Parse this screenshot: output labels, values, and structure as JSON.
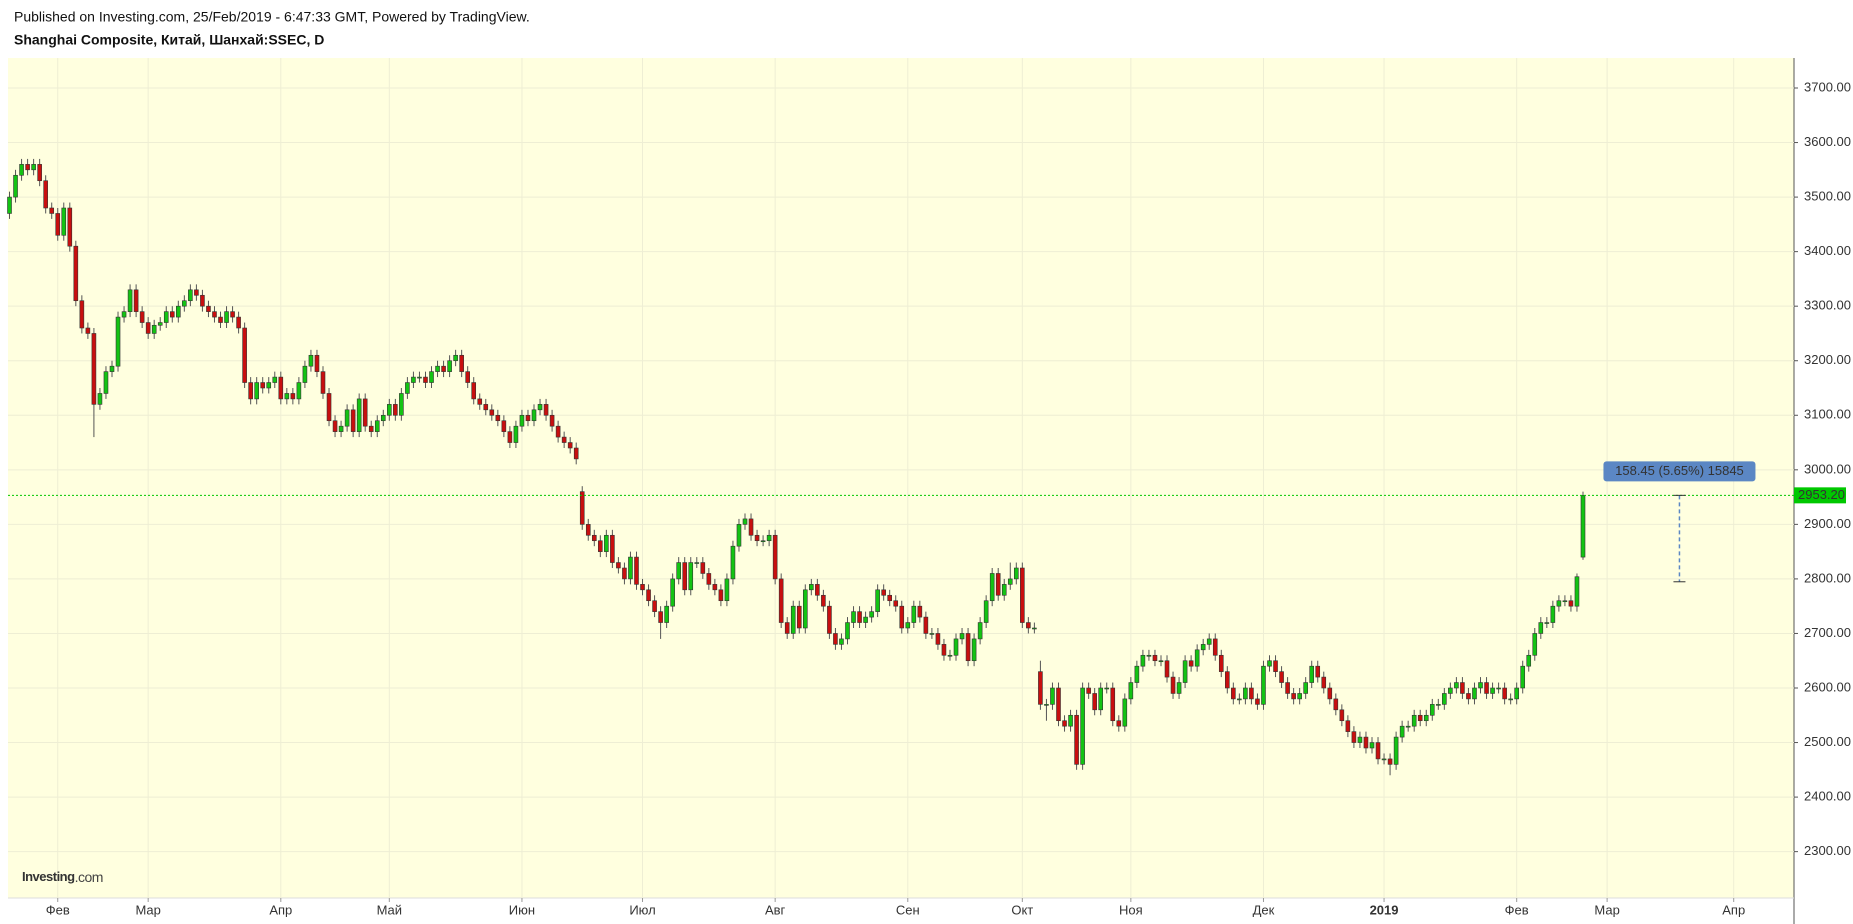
{
  "header": {
    "published": "Published on Investing.com, 25/Feb/2019 - 6:47:33 GMT, Powered by TradingView."
  },
  "chart_data": {
    "type": "candlestick",
    "title": "Shanghai Composite, Китай, Шанхай:SSEC, D",
    "logo": "Investing",
    "logo_suffix": ".com",
    "up_color": "#13c313",
    "down_color": "#c80f0f",
    "open": [
      3470,
      3500,
      3540,
      3560,
      3550,
      3560,
      3530,
      3480,
      3470,
      3430,
      3480,
      3410,
      3310,
      3260,
      3250,
      3120,
      3140,
      3180,
      3190,
      3280,
      3290,
      3330,
      3290,
      3270,
      3250,
      3265,
      3270,
      3290,
      3280,
      3300,
      3310,
      3330,
      3320,
      3300,
      3290,
      3280,
      3270,
      3290,
      3280,
      3260,
      3160,
      3130,
      3160,
      3150,
      3160,
      3170,
      3130,
      3140,
      3130,
      3160,
      3190,
      3210,
      3180,
      3140,
      3090,
      3070,
      3080,
      3110,
      3070,
      3130,
      3080,
      3070,
      3090,
      3100,
      3120,
      3100,
      3140,
      3160,
      3170,
      3170,
      3160,
      3180,
      3190,
      3180,
      3200,
      3210,
      3180,
      3160,
      3130,
      3120,
      3110,
      3100,
      3090,
      3070,
      3050,
      3080,
      3100,
      3090,
      3110,
      3120,
      3100,
      3080,
      3060,
      3050,
      3040,
      2960,
      2900,
      2880,
      2870,
      2850,
      2880,
      2830,
      2820,
      2800,
      2840,
      2790,
      2780,
      2760,
      2740,
      2720,
      2750,
      2800,
      2830,
      2780,
      2830,
      2830,
      2810,
      2790,
      2780,
      2760,
      2800,
      2860,
      2900,
      2910,
      2880,
      2870,
      2870,
      2880,
      2800,
      2720,
      2700,
      2750,
      2710,
      2780,
      2790,
      2770,
      2750,
      2700,
      2680,
      2690,
      2720,
      2740,
      2720,
      2730,
      2740,
      2780,
      2770,
      2760,
      2750,
      2710,
      2720,
      2750,
      2730,
      2700,
      2700,
      2680,
      2660,
      2660,
      2690,
      2700,
      2650,
      2690,
      2720,
      2760,
      2810,
      2770,
      2790,
      2800,
      2820,
      2720,
      2710,
      2630,
      2570,
      2570,
      2600,
      2540,
      2530,
      2550,
      2460,
      2600,
      2590,
      2560,
      2600,
      2600,
      2540,
      2530,
      2580,
      2610,
      2640,
      2660,
      2660,
      2650,
      2650,
      2620,
      2590,
      2610,
      2650,
      2640,
      2670,
      2680,
      2690,
      2660,
      2630,
      2600,
      2580,
      2580,
      2600,
      2580,
      2570,
      2640,
      2650,
      2630,
      2610,
      2590,
      2580,
      2590,
      2610,
      2640,
      2620,
      2600,
      2580,
      2560,
      2540,
      2520,
      2500,
      2510,
      2490,
      2500,
      2470,
      2470,
      2460,
      2510,
      2530,
      2530,
      2550,
      2540,
      2550,
      2570,
      2570,
      2590,
      2600,
      2610,
      2590,
      2580,
      2600,
      2610,
      2590,
      2600,
      2600,
      2580,
      2580,
      2600,
      2640,
      2660,
      2700,
      2720,
      2720,
      2750,
      2760,
      2760,
      2750,
      2840
    ],
    "high": [
      3510,
      3550,
      3570,
      3570,
      3570,
      3570,
      3540,
      3490,
      3480,
      3490,
      3490,
      3420,
      3320,
      3270,
      3260,
      3150,
      3190,
      3200,
      3290,
      3300,
      3340,
      3340,
      3300,
      3280,
      3275,
      3280,
      3300,
      3300,
      3310,
      3320,
      3340,
      3340,
      3330,
      3310,
      3300,
      3290,
      3300,
      3300,
      3290,
      3270,
      3170,
      3170,
      3170,
      3170,
      3180,
      3180,
      3150,
      3150,
      3170,
      3200,
      3220,
      3220,
      3190,
      3150,
      3100,
      3090,
      3120,
      3120,
      3140,
      3140,
      3090,
      3100,
      3110,
      3130,
      3130,
      3150,
      3170,
      3180,
      3180,
      3180,
      3190,
      3200,
      3200,
      3210,
      3220,
      3220,
      3190,
      3170,
      3140,
      3130,
      3120,
      3110,
      3100,
      3080,
      3090,
      3110,
      3110,
      3120,
      3130,
      3130,
      3110,
      3090,
      3070,
      3060,
      3050,
      2970,
      2910,
      2890,
      2880,
      2890,
      2890,
      2840,
      2830,
      2850,
      2850,
      2800,
      2790,
      2770,
      2750,
      2760,
      2810,
      2840,
      2840,
      2840,
      2840,
      2840,
      2820,
      2800,
      2790,
      2810,
      2870,
      2910,
      2920,
      2920,
      2890,
      2880,
      2890,
      2890,
      2810,
      2730,
      2760,
      2760,
      2790,
      2800,
      2800,
      2780,
      2760,
      2710,
      2700,
      2730,
      2750,
      2750,
      2740,
      2750,
      2790,
      2790,
      2780,
      2770,
      2760,
      2730,
      2760,
      2760,
      2740,
      2710,
      2710,
      2690,
      2670,
      2700,
      2710,
      2710,
      2700,
      2730,
      2770,
      2820,
      2820,
      2800,
      2830,
      2830,
      2830,
      2730,
      2720,
      2650,
      2580,
      2610,
      2610,
      2550,
      2560,
      2560,
      2610,
      2610,
      2600,
      2610,
      2610,
      2610,
      2550,
      2590,
      2620,
      2650,
      2670,
      2670,
      2670,
      2660,
      2660,
      2630,
      2620,
      2660,
      2660,
      2680,
      2690,
      2700,
      2700,
      2670,
      2640,
      2610,
      2590,
      2610,
      2610,
      2590,
      2650,
      2660,
      2660,
      2640,
      2620,
      2600,
      2600,
      2620,
      2650,
      2650,
      2630,
      2610,
      2590,
      2570,
      2550,
      2530,
      2520,
      2520,
      2510,
      2510,
      2480,
      2480,
      2520,
      2540,
      2540,
      2560,
      2560,
      2560,
      2580,
      2580,
      2600,
      2610,
      2620,
      2620,
      2600,
      2610,
      2620,
      2620,
      2610,
      2610,
      2610,
      2590,
      2610,
      2650,
      2670,
      2710,
      2730,
      2730,
      2760,
      2770,
      2770,
      2770,
      2810,
      2960
    ],
    "low": [
      3460,
      3490,
      3530,
      3540,
      3540,
      3520,
      3470,
      3460,
      3420,
      3420,
      3400,
      3300,
      3250,
      3240,
      3060,
      3110,
      3130,
      3170,
      3180,
      3270,
      3280,
      3280,
      3260,
      3240,
      3240,
      3255,
      3260,
      3270,
      3270,
      3290,
      3300,
      3310,
      3290,
      3280,
      3270,
      3260,
      3260,
      3270,
      3250,
      3150,
      3120,
      3120,
      3140,
      3140,
      3150,
      3120,
      3120,
      3120,
      3120,
      3150,
      3180,
      3170,
      3130,
      3080,
      3060,
      3060,
      3070,
      3060,
      3060,
      3070,
      3060,
      3060,
      3080,
      3090,
      3090,
      3090,
      3130,
      3150,
      3160,
      3150,
      3150,
      3170,
      3170,
      3170,
      3190,
      3170,
      3150,
      3120,
      3110,
      3100,
      3090,
      3080,
      3060,
      3040,
      3040,
      3070,
      3080,
      3080,
      3100,
      3090,
      3070,
      3050,
      3040,
      3030,
      3010,
      2890,
      2870,
      2860,
      2840,
      2840,
      2820,
      2810,
      2790,
      2790,
      2780,
      2770,
      2750,
      2730,
      2690,
      2710,
      2740,
      2790,
      2770,
      2770,
      2820,
      2800,
      2780,
      2770,
      2750,
      2750,
      2790,
      2850,
      2890,
      2870,
      2860,
      2860,
      2860,
      2790,
      2710,
      2690,
      2690,
      2700,
      2700,
      2770,
      2760,
      2740,
      2690,
      2670,
      2670,
      2680,
      2710,
      2710,
      2710,
      2720,
      2730,
      2760,
      2750,
      2740,
      2700,
      2700,
      2710,
      2720,
      2690,
      2690,
      2670,
      2650,
      2650,
      2650,
      2680,
      2640,
      2640,
      2680,
      2710,
      2750,
      2760,
      2760,
      2780,
      2790,
      2710,
      2700,
      2700,
      2560,
      2540,
      2560,
      2530,
      2520,
      2520,
      2450,
      2450,
      2580,
      2550,
      2550,
      2590,
      2530,
      2520,
      2520,
      2570,
      2600,
      2630,
      2650,
      2640,
      2640,
      2610,
      2580,
      2580,
      2600,
      2630,
      2630,
      2660,
      2670,
      2650,
      2620,
      2590,
      2570,
      2570,
      2570,
      2570,
      2560,
      2560,
      2630,
      2620,
      2600,
      2580,
      2570,
      2570,
      2580,
      2600,
      2610,
      2590,
      2570,
      2550,
      2530,
      2510,
      2490,
      2490,
      2480,
      2480,
      2460,
      2460,
      2440,
      2450,
      2500,
      2520,
      2520,
      2530,
      2530,
      2540,
      2560,
      2560,
      2580,
      2590,
      2580,
      2570,
      2570,
      2590,
      2580,
      2580,
      2590,
      2570,
      2570,
      2570,
      2590,
      2630,
      2650,
      2690,
      2710,
      2710,
      2740,
      2750,
      2740,
      2740,
      2835
    ],
    "close": [
      3500,
      3540,
      3560,
      3550,
      3560,
      3530,
      3480,
      3470,
      3430,
      3480,
      3410,
      3310,
      3260,
      3250,
      3120,
      3140,
      3180,
      3190,
      3280,
      3290,
      3330,
      3290,
      3270,
      3250,
      3265,
      3270,
      3290,
      3280,
      3300,
      3310,
      3330,
      3320,
      3300,
      3290,
      3280,
      3270,
      3290,
      3280,
      3260,
      3160,
      3130,
      3160,
      3150,
      3160,
      3170,
      3130,
      3140,
      3130,
      3160,
      3190,
      3210,
      3180,
      3140,
      3090,
      3070,
      3080,
      3110,
      3070,
      3130,
      3080,
      3070,
      3090,
      3100,
      3120,
      3100,
      3140,
      3160,
      3170,
      3170,
      3160,
      3180,
      3190,
      3180,
      3200,
      3210,
      3180,
      3160,
      3130,
      3120,
      3110,
      3100,
      3090,
      3070,
      3050,
      3080,
      3100,
      3090,
      3110,
      3120,
      3100,
      3080,
      3060,
      3050,
      3040,
      3020,
      2900,
      2880,
      2870,
      2850,
      2880,
      2830,
      2820,
      2800,
      2840,
      2790,
      2780,
      2760,
      2740,
      2720,
      2750,
      2800,
      2830,
      2780,
      2830,
      2830,
      2810,
      2790,
      2780,
      2760,
      2800,
      2860,
      2900,
      2910,
      2880,
      2870,
      2870,
      2880,
      2800,
      2720,
      2700,
      2750,
      2710,
      2780,
      2790,
      2770,
      2750,
      2700,
      2680,
      2690,
      2720,
      2740,
      2720,
      2730,
      2740,
      2780,
      2770,
      2760,
      2750,
      2710,
      2720,
      2750,
      2730,
      2700,
      2700,
      2680,
      2660,
      2660,
      2690,
      2700,
      2650,
      2690,
      2720,
      2760,
      2810,
      2770,
      2790,
      2800,
      2820,
      2720,
      2710,
      2710,
      2570,
      2570,
      2600,
      2540,
      2530,
      2550,
      2460,
      2600,
      2590,
      2560,
      2600,
      2600,
      2540,
      2530,
      2580,
      2610,
      2640,
      2660,
      2660,
      2650,
      2650,
      2620,
      2590,
      2610,
      2650,
      2640,
      2670,
      2680,
      2690,
      2660,
      2630,
      2600,
      2580,
      2580,
      2600,
      2580,
      2570,
      2640,
      2650,
      2630,
      2610,
      2590,
      2580,
      2590,
      2610,
      2640,
      2620,
      2600,
      2580,
      2560,
      2540,
      2520,
      2500,
      2510,
      2490,
      2500,
      2470,
      2470,
      2460,
      2510,
      2530,
      2530,
      2550,
      2540,
      2550,
      2570,
      2570,
      2590,
      2600,
      2610,
      2590,
      2580,
      2600,
      2610,
      2590,
      2600,
      2600,
      2580,
      2580,
      2600,
      2640,
      2660,
      2700,
      2720,
      2720,
      2750,
      2760,
      2760,
      2750,
      2804,
      2953.2
    ],
    "xlim": [
      -0.25,
      296
    ],
    "xticks": [
      {
        "value": 8,
        "label": "Фев"
      },
      {
        "value": 23,
        "label": "Мар"
      },
      {
        "value": 45,
        "label": "Апр"
      },
      {
        "value": 63,
        "label": "Май"
      },
      {
        "value": 85,
        "label": "Июн"
      },
      {
        "value": 105,
        "label": "Июл"
      },
      {
        "value": 127,
        "label": "Авг"
      },
      {
        "value": 149,
        "label": "Сен"
      },
      {
        "value": 168,
        "label": "Окт"
      },
      {
        "value": 186,
        "label": "Ноя"
      },
      {
        "value": 208,
        "label": "Дек"
      },
      {
        "value": 228,
        "label": "2019"
      },
      {
        "value": 250,
        "label": "Фев"
      },
      {
        "value": 265,
        "label": "Мар"
      },
      {
        "value": 286,
        "label": "Апр"
      }
    ],
    "ylim": [
      2215,
      3755
    ],
    "yticks": [
      {
        "value": 2300,
        "label": "2300.00"
      },
      {
        "value": 2400,
        "label": "2400.00"
      },
      {
        "value": 2500,
        "label": "2500.00"
      },
      {
        "value": 2600,
        "label": "2600.00"
      },
      {
        "value": 2700,
        "label": "2700.00"
      },
      {
        "value": 2800,
        "label": "2800.00"
      },
      {
        "value": 2900,
        "label": "2900.00"
      },
      {
        "value": 3000,
        "label": "3000.00"
      },
      {
        "value": 3100,
        "label": "3100.00"
      },
      {
        "value": 3200,
        "label": "3200.00"
      },
      {
        "value": 3300,
        "label": "3300.00"
      },
      {
        "value": 3400,
        "label": "3400.00"
      },
      {
        "value": 3500,
        "label": "3500.00"
      },
      {
        "value": 3600,
        "label": "3600.00"
      },
      {
        "value": 3700,
        "label": "3700.00"
      }
    ],
    "grid": true,
    "price_line": {
      "value": 2953.2,
      "label": "2953.20",
      "color": "#00c800"
    },
    "measure": {
      "label": "158.45 (5.65%) 15845",
      "from": 2794.75,
      "to": 2953.2,
      "color": "#5b87c4"
    }
  }
}
